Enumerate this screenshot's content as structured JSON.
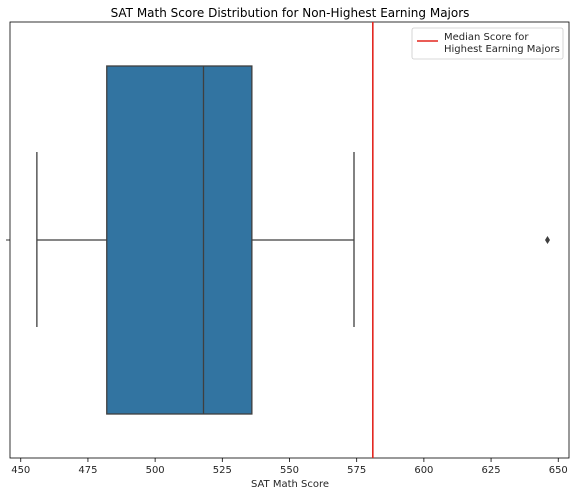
{
  "chart_data": {
    "type": "box",
    "title": "SAT Math Score Distribution for Non-Highest Earning Majors",
    "xlabel": "SAT Math Score",
    "ylabel": "",
    "xlim": [
      446,
      654
    ],
    "xticks": [
      450,
      475,
      500,
      525,
      550,
      575,
      600,
      625,
      650
    ],
    "grid": false,
    "box": {
      "whisker_low": 456,
      "q1": 482,
      "median": 518,
      "q3": 536,
      "whisker_high": 574,
      "outliers": [
        646
      ],
      "color": "#3274a1"
    },
    "reference_line": {
      "x": 581,
      "color": "#e3261f",
      "label": "Median Score for Highest Earning Majors",
      "label_lines": [
        "Median Score for",
        "Highest Earning Majors"
      ]
    },
    "legend": {
      "position": "top-right"
    }
  }
}
